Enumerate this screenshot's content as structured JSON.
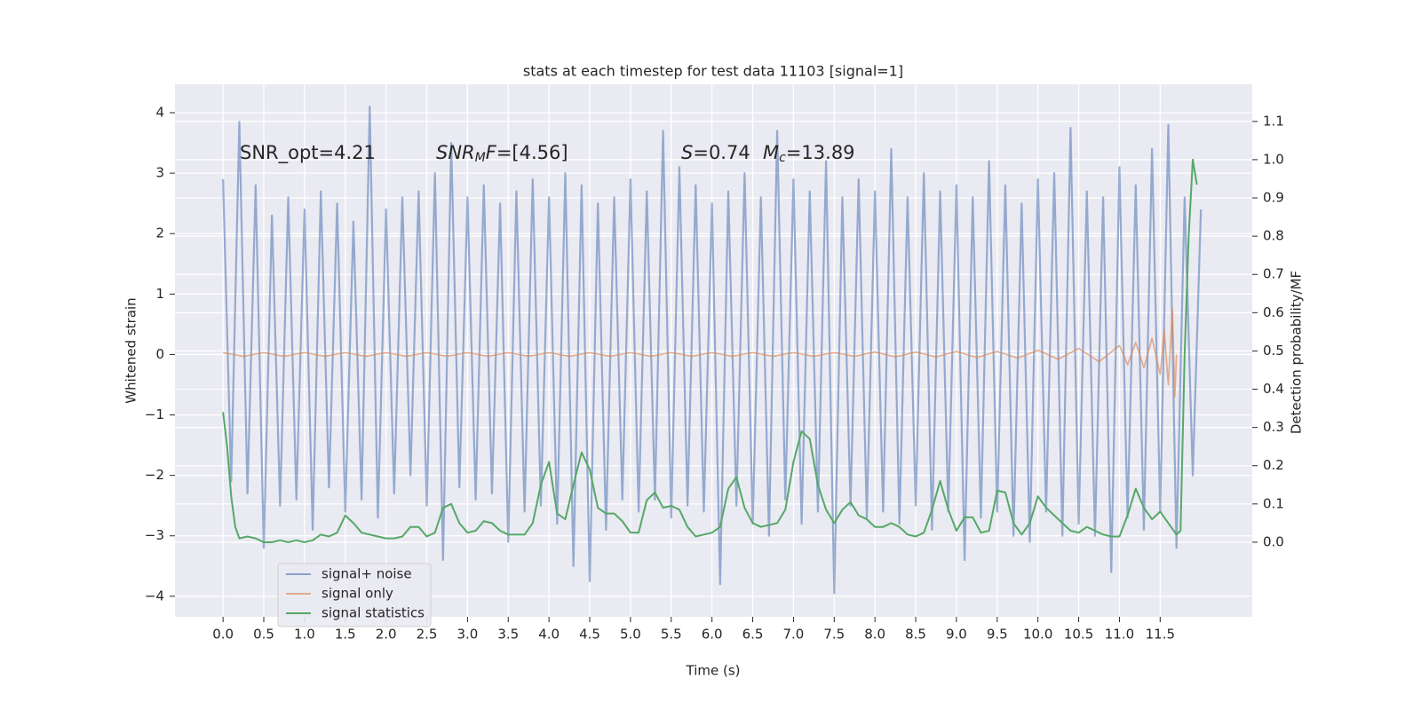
{
  "chart_data": {
    "type": "line",
    "title": "stats at each timestep for test data 11103 [signal=1]",
    "xlabel": "Time (s)",
    "ylabel": "Whitened strain",
    "y2label": "Detection probability/MF",
    "grid": true,
    "legend": "lower left",
    "annotations": [
      [
        {
          "text": "SNR_opt=4.21",
          "style": "normal"
        }
      ],
      [
        {
          "text": "SNR",
          "style": "italic"
        },
        {
          "text": "M",
          "style": "italic-sub"
        },
        {
          "text": "F",
          "style": "italic"
        },
        {
          "text": "=[4.56]",
          "style": "normal"
        }
      ],
      [
        {
          "text": "S",
          "style": "italic"
        },
        {
          "text": "=0.74",
          "style": "normal"
        }
      ],
      [
        {
          "text": "M",
          "style": "italic"
        },
        {
          "text": "c",
          "style": "italic-sub"
        },
        {
          "text": "=13.89",
          "style": "normal"
        }
      ]
    ],
    "xlim": [
      -0.59,
      12.63
    ],
    "xticks": [
      {
        "value": 0,
        "label": "0.0"
      },
      0.5,
      {
        "value": 1,
        "label": "1.0"
      },
      1.5,
      {
        "value": 2,
        "label": "2.0"
      },
      2.5,
      {
        "value": 3,
        "label": "3.0"
      },
      3.5,
      {
        "value": 4,
        "label": "4.0"
      },
      4.5,
      {
        "value": 5,
        "label": "5.0"
      },
      5.5,
      {
        "value": 6,
        "label": "6.0"
      },
      6.5,
      {
        "value": 7,
        "label": "7.0"
      },
      7.5,
      {
        "value": 8,
        "label": "8.0"
      },
      8.5,
      {
        "value": 9,
        "label": "9.0"
      },
      9.5,
      {
        "value": 10,
        "label": "10.0"
      },
      10.5,
      {
        "value": 11,
        "label": "11.0"
      },
      11.5
    ],
    "ylim": [
      -4.34,
      4.47
    ],
    "yticks": [
      {
        "value": -4,
        "label": "−4"
      },
      {
        "value": -3,
        "label": "−3"
      },
      {
        "value": -2,
        "label": "−2"
      },
      {
        "value": -1,
        "label": "−1"
      },
      0,
      1,
      2,
      3,
      4
    ],
    "y2lim": [
      -0.195,
      1.197
    ],
    "y2ticks": [
      {
        "value": 0,
        "label": "0.0"
      },
      0.1,
      0.2,
      0.3,
      0.4,
      0.5,
      0.6,
      0.7,
      0.8,
      0.9,
      {
        "value": 1,
        "label": "1.0"
      },
      1.1
    ],
    "series": [
      {
        "name": "signal+ noise",
        "color": "#4c72b0",
        "x": [
          0,
          0.1,
          0.2,
          0.3,
          0.4,
          0.5,
          0.6,
          0.7,
          0.8,
          0.9,
          1,
          1.1,
          1.2,
          1.3,
          1.4,
          1.5,
          1.6,
          1.7,
          1.8,
          1.9,
          2,
          2.1,
          2.2,
          2.3,
          2.4,
          2.5,
          2.6,
          2.7,
          2.8,
          2.9,
          3,
          3.1,
          3.2,
          3.3,
          3.4,
          3.5,
          3.6,
          3.7,
          3.8,
          3.9,
          4,
          4.1,
          4.2,
          4.3,
          4.4,
          4.5,
          4.6,
          4.7,
          4.8,
          4.9,
          5,
          5.1,
          5.2,
          5.3,
          5.4,
          5.5,
          5.6,
          5.7,
          5.8,
          5.9,
          6,
          6.1,
          6.2,
          6.3,
          6.4,
          6.5,
          6.6,
          6.7,
          6.8,
          6.9,
          7,
          7.1,
          7.2,
          7.3,
          7.4,
          7.5,
          7.6,
          7.7,
          7.8,
          7.9,
          8,
          8.1,
          8.2,
          8.3,
          8.4,
          8.5,
          8.6,
          8.7,
          8.8,
          8.9,
          9,
          9.1,
          9.2,
          9.3,
          9.4,
          9.5,
          9.6,
          9.7,
          9.8,
          9.9,
          10,
          10.1,
          10.2,
          10.3,
          10.4,
          10.5,
          10.6,
          10.7,
          10.8,
          10.9,
          11,
          11.1,
          11.2,
          11.3,
          11.4,
          11.5,
          11.6,
          11.7,
          11.8,
          11.9,
          12
        ],
        "values": [
          2.9,
          -2.1,
          3.85,
          -2.3,
          2.8,
          -3.2,
          2.3,
          -2.5,
          2.6,
          -2.4,
          2.4,
          -2.9,
          2.7,
          -2.2,
          2.5,
          -2.6,
          2.2,
          -2.4,
          4.1,
          -2.7,
          2.4,
          -2.3,
          2.6,
          -2.0,
          2.7,
          -2.5,
          3.0,
          -3.4,
          3.5,
          -2.2,
          2.6,
          -2.4,
          2.8,
          -2.3,
          2.5,
          -3.1,
          2.7,
          -2.6,
          2.9,
          -2.5,
          2.6,
          -2.8,
          3.0,
          -3.5,
          2.8,
          -3.75,
          2.5,
          -2.9,
          2.6,
          -2.4,
          2.9,
          -2.6,
          2.7,
          -2.4,
          3.7,
          -2.7,
          3.1,
          -2.5,
          2.8,
          -2.6,
          2.5,
          -3.8,
          2.7,
          -2.5,
          3.0,
          -2.8,
          2.6,
          -3.0,
          3.7,
          -2.4,
          2.9,
          -2.8,
          2.7,
          -2.6,
          3.2,
          -3.95,
          2.6,
          -2.5,
          2.9,
          -2.7,
          2.7,
          -2.6,
          3.4,
          -2.8,
          2.6,
          -2.5,
          3.0,
          -2.9,
          2.7,
          -2.6,
          2.8,
          -3.4,
          2.6,
          -2.7,
          3.2,
          -2.6,
          2.8,
          -3.0,
          2.5,
          -3.1,
          2.9,
          -2.6,
          3.0,
          -3.0,
          3.75,
          -2.8,
          2.7,
          -3.0,
          2.6,
          -3.6,
          3.1,
          -2.7,
          2.8,
          -2.9,
          3.4,
          -2.6,
          3.8,
          -3.2,
          2.6,
          -2.0,
          2.4
        ]
      },
      {
        "name": "signal only",
        "color": "#dd8452",
        "x": [
          0,
          0.25,
          0.5,
          0.75,
          1,
          1.25,
          1.5,
          1.75,
          2,
          2.25,
          2.5,
          2.75,
          3,
          3.25,
          3.5,
          3.75,
          4,
          4.25,
          4.5,
          4.75,
          5,
          5.25,
          5.5,
          5.75,
          6,
          6.25,
          6.5,
          6.75,
          7,
          7.25,
          7.5,
          7.75,
          8,
          8.25,
          8.5,
          8.75,
          9,
          9.25,
          9.5,
          9.75,
          10,
          10.25,
          10.5,
          10.75,
          11,
          11.1,
          11.2,
          11.3,
          11.4,
          11.5,
          11.55,
          11.6,
          11.65,
          11.68,
          11.7
        ],
        "values": [
          0.03,
          -0.03,
          0.03,
          -0.03,
          0.03,
          -0.03,
          0.03,
          -0.03,
          0.03,
          -0.03,
          0.03,
          -0.03,
          0.03,
          -0.03,
          0.03,
          -0.03,
          0.03,
          -0.03,
          0.03,
          -0.03,
          0.03,
          -0.03,
          0.03,
          -0.03,
          0.03,
          -0.03,
          0.03,
          -0.03,
          0.03,
          -0.03,
          0.03,
          -0.03,
          0.04,
          -0.04,
          0.04,
          -0.04,
          0.05,
          -0.05,
          0.05,
          -0.06,
          0.07,
          -0.08,
          0.1,
          -0.12,
          0.15,
          -0.17,
          0.2,
          -0.22,
          0.27,
          -0.33,
          0.4,
          -0.5,
          0.75,
          -0.7,
          0
        ]
      },
      {
        "name": "signal statistics",
        "color": "#55a868",
        "axis": "y2",
        "x": [
          0,
          0.05,
          0.1,
          0.15,
          0.2,
          0.3,
          0.4,
          0.5,
          0.6,
          0.7,
          0.8,
          0.9,
          1,
          1.1,
          1.2,
          1.3,
          1.4,
          1.5,
          1.6,
          1.7,
          1.8,
          1.9,
          2,
          2.1,
          2.2,
          2.3,
          2.4,
          2.5,
          2.6,
          2.7,
          2.8,
          2.9,
          3,
          3.1,
          3.2,
          3.3,
          3.4,
          3.5,
          3.6,
          3.7,
          3.8,
          3.9,
          4,
          4.1,
          4.2,
          4.3,
          4.4,
          4.5,
          4.6,
          4.7,
          4.8,
          4.9,
          5,
          5.1,
          5.2,
          5.3,
          5.4,
          5.5,
          5.6,
          5.7,
          5.8,
          5.9,
          6,
          6.1,
          6.2,
          6.3,
          6.4,
          6.5,
          6.6,
          6.7,
          6.8,
          6.9,
          7,
          7.1,
          7.2,
          7.3,
          7.4,
          7.5,
          7.6,
          7.7,
          7.8,
          7.9,
          8,
          8.1,
          8.2,
          8.3,
          8.4,
          8.5,
          8.6,
          8.7,
          8.8,
          8.9,
          9,
          9.1,
          9.2,
          9.3,
          9.4,
          9.5,
          9.6,
          9.7,
          9.8,
          9.9,
          10,
          10.1,
          10.2,
          10.3,
          10.4,
          10.5,
          10.6,
          10.7,
          10.8,
          10.9,
          11,
          11.1,
          11.2,
          11.3,
          11.4,
          11.5,
          11.6,
          11.7,
          11.75,
          11.8,
          11.85,
          11.9,
          11.95
        ],
        "values": [
          0.34,
          0.25,
          0.12,
          0.04,
          0.01,
          0.015,
          0.01,
          0,
          0,
          0.005,
          0,
          0.005,
          0,
          0.005,
          0.02,
          0.015,
          0.025,
          0.07,
          0.05,
          0.025,
          0.02,
          0.015,
          0.01,
          0.01,
          0.015,
          0.04,
          0.04,
          0.015,
          0.025,
          0.09,
          0.1,
          0.05,
          0.025,
          0.03,
          0.055,
          0.05,
          0.03,
          0.02,
          0.02,
          0.02,
          0.05,
          0.15,
          0.21,
          0.075,
          0.06,
          0.15,
          0.235,
          0.19,
          0.09,
          0.075,
          0.075,
          0.055,
          0.025,
          0.025,
          0.11,
          0.13,
          0.09,
          0.095,
          0.085,
          0.04,
          0.015,
          0.02,
          0.025,
          0.04,
          0.14,
          0.17,
          0.09,
          0.05,
          0.04,
          0.045,
          0.05,
          0.085,
          0.21,
          0.29,
          0.27,
          0.15,
          0.085,
          0.05,
          0.085,
          0.105,
          0.07,
          0.06,
          0.04,
          0.04,
          0.05,
          0.04,
          0.02,
          0.015,
          0.025,
          0.085,
          0.16,
          0.085,
          0.03,
          0.065,
          0.065,
          0.025,
          0.03,
          0.135,
          0.13,
          0.05,
          0.02,
          0.05,
          0.12,
          0.09,
          0.07,
          0.05,
          0.03,
          0.025,
          0.04,
          0.03,
          0.02,
          0.015,
          0.015,
          0.07,
          0.14,
          0.09,
          0.06,
          0.08,
          0.05,
          0.02,
          0.03,
          0.49,
          0.8,
          1.0,
          0.935
        ]
      }
    ]
  }
}
